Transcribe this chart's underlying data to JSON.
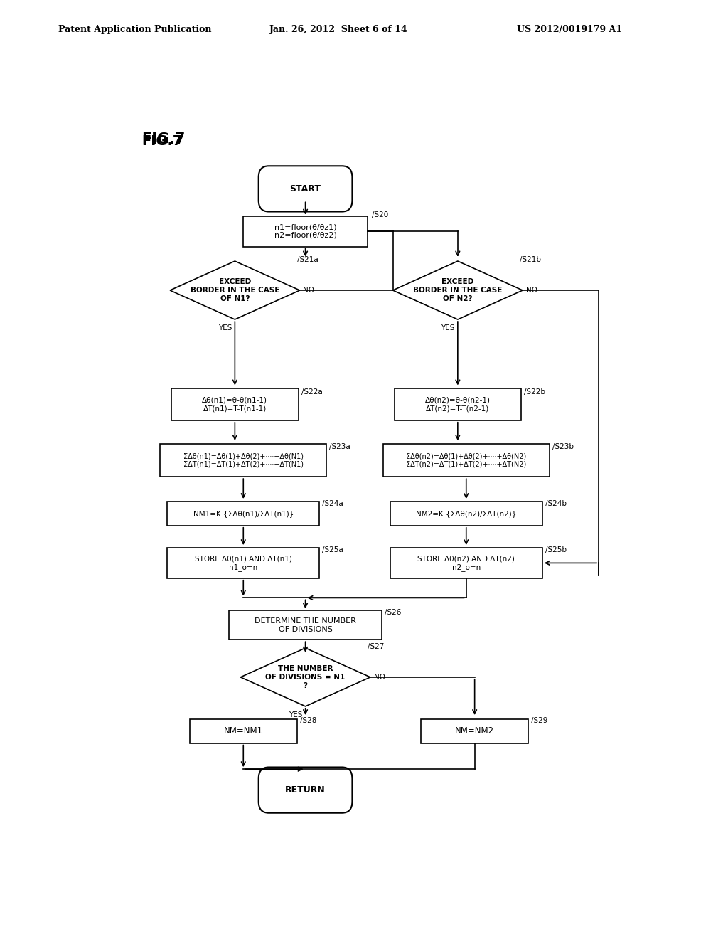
{
  "title_header": "Patent Application Publication",
  "date_header": "Jan. 26, 2012  Sheet 6 of 14",
  "patent_header": "US 2012/0019179 A1",
  "fig_label": "FIG.7",
  "bg_color": "#ffffff",
  "line_color": "#000000",
  "text_color": "#000000"
}
